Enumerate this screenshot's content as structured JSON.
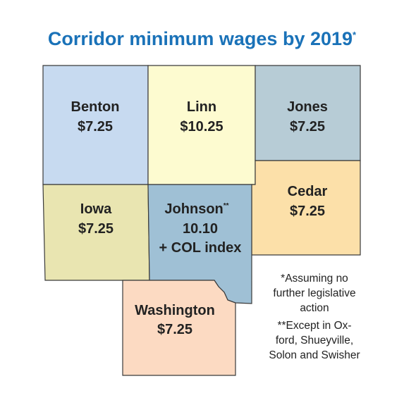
{
  "title": {
    "text": "Corridor minimum wages by 2019",
    "marker": "*",
    "color": "#1a72b8"
  },
  "counties": {
    "benton": {
      "name": "Benton",
      "wage": "$7.25",
      "color": "#c7daf0"
    },
    "linn": {
      "name": "Linn",
      "wage": "$10.25",
      "color": "#fdfbd0"
    },
    "jones": {
      "name": "Jones",
      "wage": "$7.25",
      "color": "#b7ccd6"
    },
    "iowa": {
      "name": "Iowa",
      "wage": "$7.25",
      "color": "#e9e5b1"
    },
    "johnson": {
      "name": "Johnson",
      "marker": "**",
      "wage_line1": "10.10",
      "wage_line2": "+ COL index",
      "color": "#9fc0d5"
    },
    "cedar": {
      "name": "Cedar",
      "wage": "$7.25",
      "color": "#fce0a9"
    },
    "washington": {
      "name": "Washington",
      "wage": "$7.25",
      "color": "#fcdac2"
    }
  },
  "footnotes": {
    "line1": "*Assuming no",
    "line2": "further legislative",
    "line3": "action",
    "line4": "**Except in Ox-",
    "line5": "ford, Shueyville,",
    "line6": "Solon and Swisher"
  }
}
